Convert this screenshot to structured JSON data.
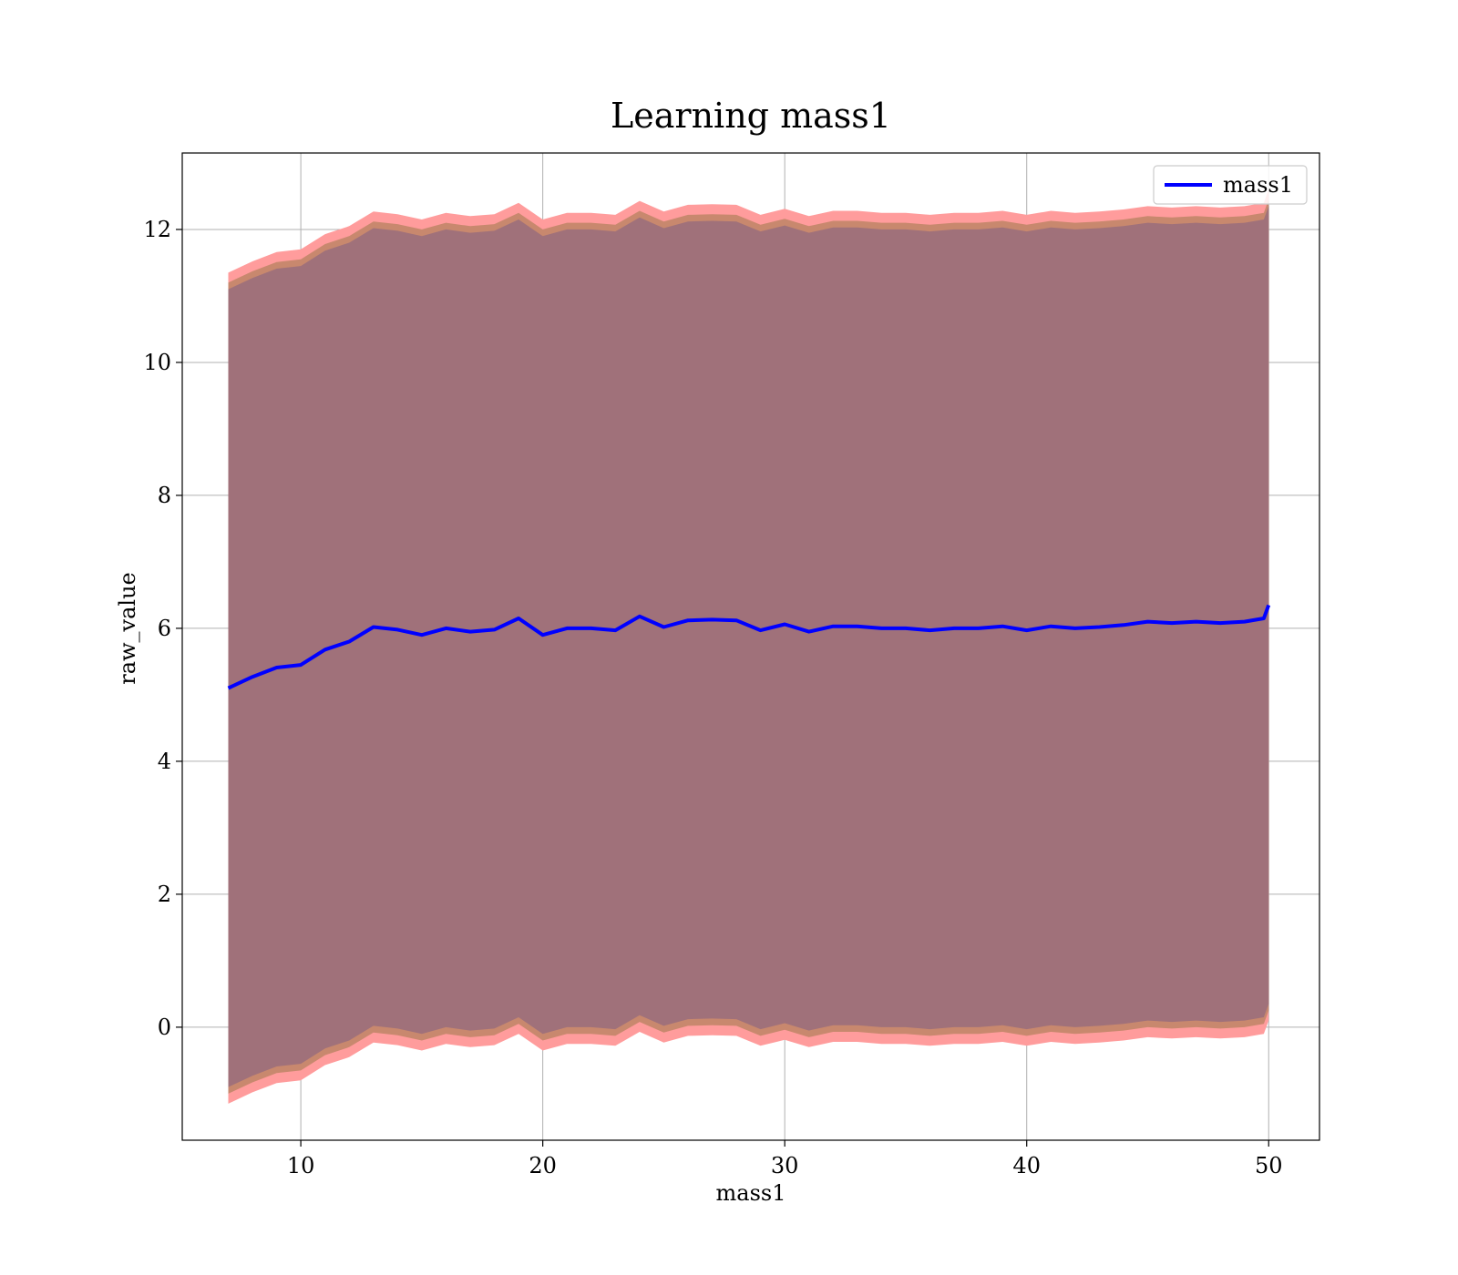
{
  "chart_data": {
    "type": "line",
    "title": "Learning mass1",
    "xlabel": "mass1",
    "ylabel": "raw_value",
    "xlim": [
      5.1,
      52.1
    ],
    "ylim": [
      -1.7,
      13.15
    ],
    "xticks": [
      10,
      20,
      30,
      40,
      50
    ],
    "yticks": [
      0,
      2,
      4,
      6,
      8,
      10,
      12
    ],
    "grid": true,
    "legend": {
      "placement": "top-right",
      "entries": [
        "mass1"
      ]
    },
    "colors": {
      "line": "#0000ff",
      "band_inner": "#a0717a",
      "band_mid": "#c8886e",
      "band_outer": "#ff9c9c",
      "grid": "#b0b0b0"
    },
    "series": [
      {
        "name": "mass1",
        "x": [
          7.0,
          8.0,
          9.0,
          10.0,
          11.0,
          12.0,
          13.0,
          14.0,
          15.0,
          16.0,
          17.0,
          18.0,
          19.0,
          20.0,
          21.0,
          22.0,
          23.0,
          24.0,
          25.0,
          26.0,
          27.0,
          28.0,
          29.0,
          30.0,
          31.0,
          32.0,
          33.0,
          34.0,
          35.0,
          36.0,
          37.0,
          38.0,
          39.0,
          40.0,
          41.0,
          42.0,
          43.0,
          44.0,
          45.0,
          46.0,
          47.0,
          48.0,
          49.0,
          49.8,
          50.0
        ],
        "y": [
          5.1,
          5.27,
          5.41,
          5.45,
          5.68,
          5.8,
          6.02,
          5.98,
          5.9,
          6.0,
          5.95,
          5.98,
          6.15,
          5.9,
          6.0,
          6.0,
          5.97,
          6.18,
          6.02,
          6.12,
          6.13,
          6.12,
          5.97,
          6.06,
          5.95,
          6.03,
          6.03,
          6.0,
          6.0,
          5.97,
          6.0,
          6.0,
          6.03,
          5.97,
          6.03,
          6.0,
          6.02,
          6.05,
          6.1,
          6.08,
          6.1,
          6.08,
          6.1,
          6.15,
          6.35
        ],
        "band_inner": [
          6.0,
          6.0,
          6.0,
          6.0,
          6.0,
          6.0,
          6.0,
          6.0,
          6.0,
          6.0,
          6.0,
          6.0,
          6.0,
          6.0,
          6.0,
          6.0,
          6.0,
          6.0,
          6.0,
          6.0,
          6.0,
          6.0,
          6.0,
          6.0,
          6.0,
          6.0,
          6.0,
          6.0,
          6.0,
          6.0,
          6.0,
          6.0,
          6.0,
          6.0,
          6.0,
          6.0,
          6.0,
          6.0,
          6.0,
          6.0,
          6.0,
          6.0,
          6.0,
          6.0,
          6.0
        ],
        "band_mid": [
          6.1,
          6.1,
          6.1,
          6.1,
          6.1,
          6.1,
          6.1,
          6.1,
          6.1,
          6.1,
          6.1,
          6.1,
          6.1,
          6.1,
          6.1,
          6.1,
          6.1,
          6.1,
          6.1,
          6.1,
          6.1,
          6.1,
          6.1,
          6.1,
          6.1,
          6.1,
          6.1,
          6.1,
          6.1,
          6.1,
          6.1,
          6.1,
          6.1,
          6.1,
          6.1,
          6.1,
          6.1,
          6.1,
          6.1,
          6.1,
          6.1,
          6.1,
          6.1,
          6.1,
          6.1
        ],
        "band_outer": [
          6.25,
          6.25,
          6.25,
          6.25,
          6.25,
          6.25,
          6.25,
          6.25,
          6.25,
          6.25,
          6.25,
          6.25,
          6.25,
          6.25,
          6.25,
          6.25,
          6.25,
          6.25,
          6.25,
          6.25,
          6.25,
          6.25,
          6.25,
          6.25,
          6.25,
          6.25,
          6.25,
          6.25,
          6.25,
          6.25,
          6.25,
          6.25,
          6.25,
          6.25,
          6.25,
          6.25,
          6.25,
          6.25,
          6.25,
          6.25,
          6.25,
          6.25,
          6.25,
          6.25,
          6.25
        ]
      }
    ]
  }
}
